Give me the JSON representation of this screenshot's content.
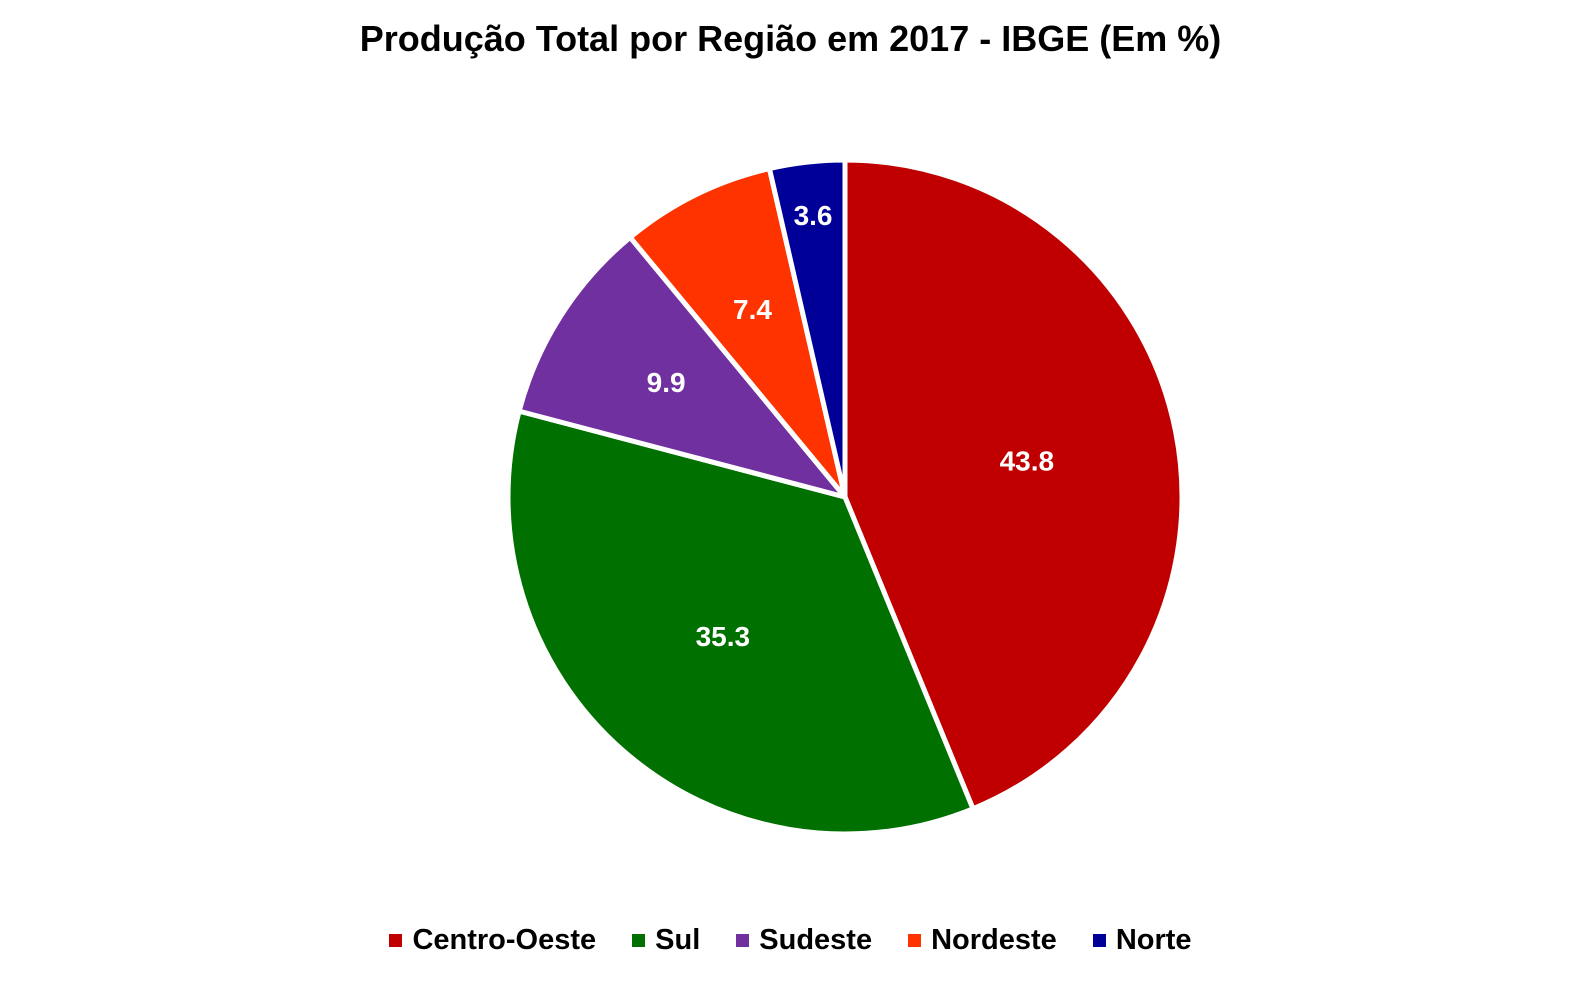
{
  "chart_data": {
    "type": "pie",
    "title": "Produção Total por Região em 2017 - IBGE (Em %)",
    "slices": [
      {
        "name": "Centro-Oeste",
        "value": 43.8,
        "label": "43.8",
        "color": "#C00000"
      },
      {
        "name": "Sul",
        "value": 35.3,
        "label": "35.3",
        "color": "#007000"
      },
      {
        "name": "Sudeste",
        "value": 9.9,
        "label": "9.9",
        "color": "#7030A0"
      },
      {
        "name": "Nordeste",
        "value": 7.4,
        "label": "7.4",
        "color": "#FF3300"
      },
      {
        "name": "Norte",
        "value": 3.6,
        "label": "3.6",
        "color": "#000099"
      }
    ],
    "start_angle": "12 o'clock",
    "direction": "clockwise",
    "legend_position": "bottom"
  }
}
